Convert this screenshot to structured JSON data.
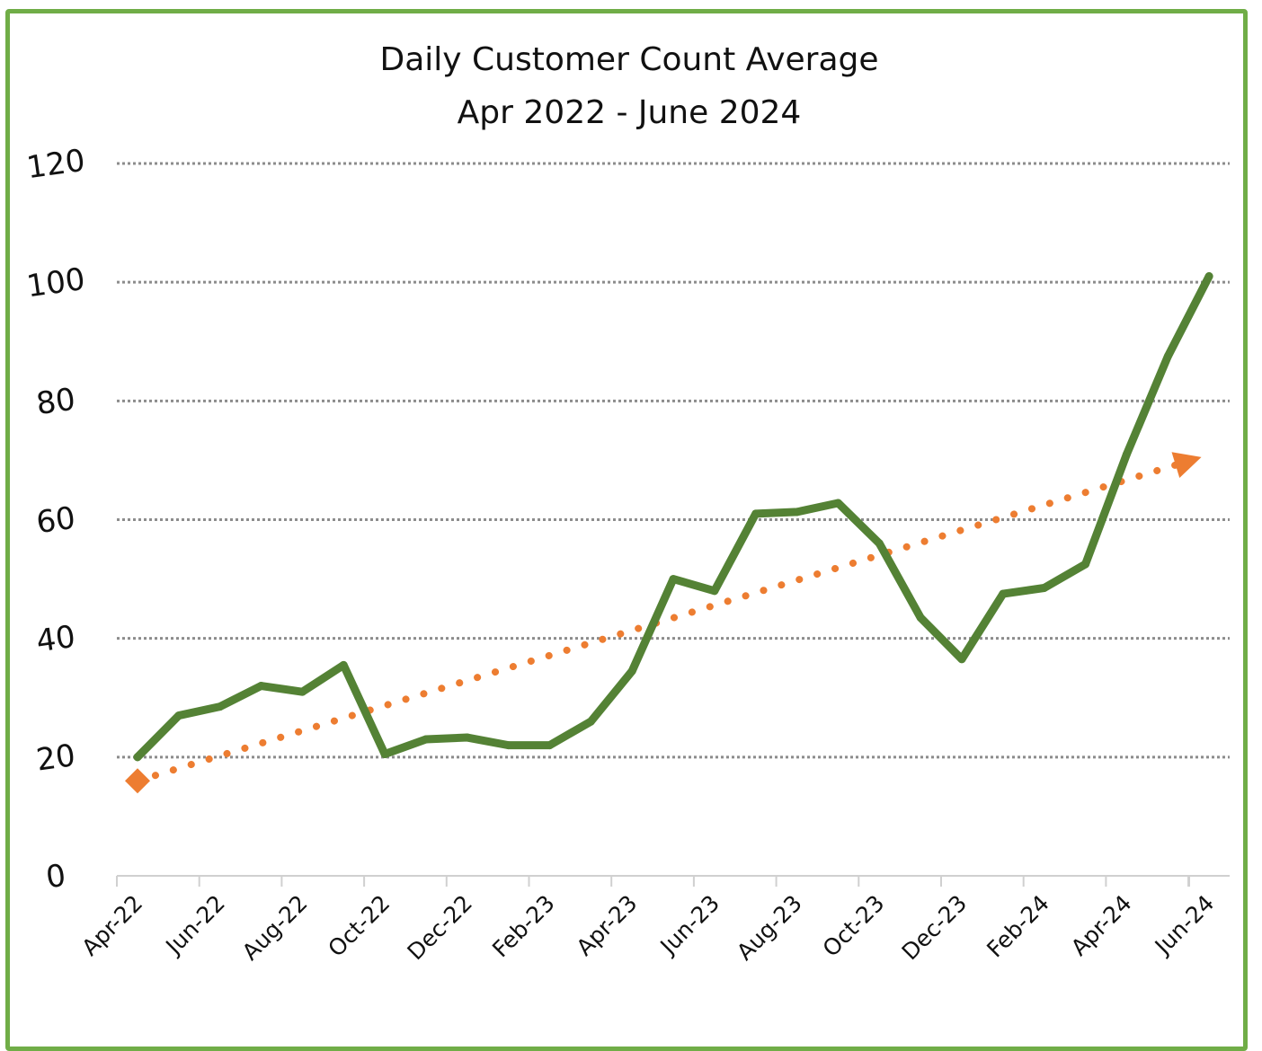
{
  "chart_data": {
    "type": "line",
    "title": "Daily Customer Count Average",
    "subtitle": "Apr 2022 - June 2024",
    "xlabel": "",
    "ylabel": "",
    "ylim": [
      0,
      120
    ],
    "yticks": [
      0,
      20,
      40,
      60,
      80,
      100,
      120
    ],
    "grid": true,
    "x_tick_labels": [
      "Apr-22",
      "Jun-22",
      "Aug-22",
      "Oct-22",
      "Dec-22",
      "Feb-23",
      "Apr-23",
      "Jun-23",
      "Aug-23",
      "Oct-23",
      "Dec-23",
      "Feb-24",
      "Apr-24",
      "Jun-24"
    ],
    "x": [
      "Apr-22",
      "May-22",
      "Jun-22",
      "Jul-22",
      "Aug-22",
      "Sep-22",
      "Oct-22",
      "Nov-22",
      "Dec-22",
      "Jan-23",
      "Feb-23",
      "Mar-23",
      "Apr-23",
      "May-23",
      "Jun-23",
      "Jul-23",
      "Aug-23",
      "Sep-23",
      "Oct-23",
      "Nov-23",
      "Dec-23",
      "Jan-24",
      "Feb-24",
      "Mar-24",
      "Apr-24",
      "May-24",
      "Jun-24"
    ],
    "series": [
      {
        "values": [
          20,
          27,
          28.5,
          32,
          31,
          35.5,
          20.5,
          23,
          23.3,
          22,
          22,
          26,
          34.5,
          50,
          48,
          61,
          61.3,
          62.8,
          56,
          43.5,
          36.5,
          47.5,
          48.5,
          52.5,
          71,
          87.5,
          101
        ],
        "color": "#548235"
      }
    ],
    "trendline": {
      "type": "linear",
      "start_value": 16,
      "end_value": 70,
      "color": "#ED7D31",
      "style": "dotted",
      "start_marker": "diamond",
      "end_marker": "triangle"
    },
    "frame_color": "#70AD47",
    "gridline_color": "#8C8C8C"
  }
}
